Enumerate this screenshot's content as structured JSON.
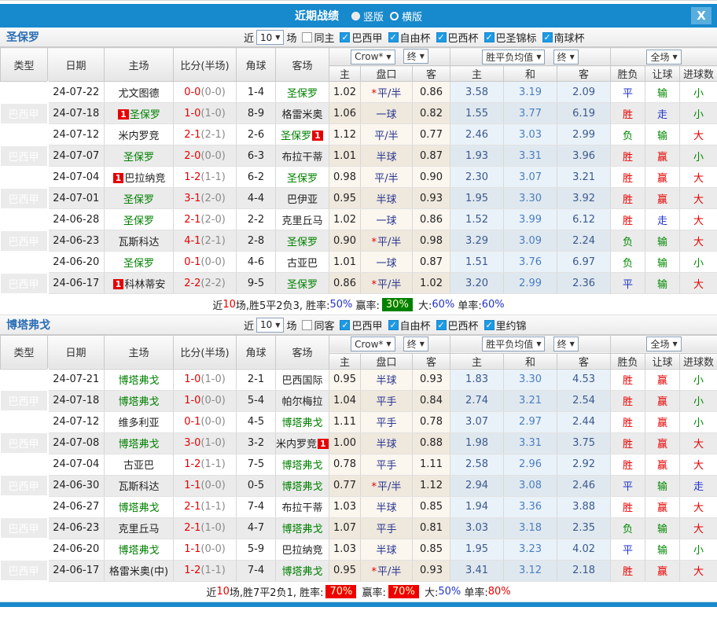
{
  "titlebar": {
    "title": "近期战绩",
    "radios": [
      {
        "label": "竖版",
        "selected": true
      },
      {
        "label": "横版",
        "selected": false
      }
    ],
    "close_icon": "X"
  },
  "icons": {
    "dropdown_arrow": "▼",
    "check": "✓"
  },
  "colors": {
    "titlebar_blue": "#1789cd",
    "type_gold": "#9e7c1c",
    "focus_team_green": "#008000",
    "score_red": "#e60000",
    "handicap_navy": "#28368f",
    "percent_blue": "#2233cc",
    "badge_green": "#008000",
    "badge_red": "#ee0000"
  },
  "table_header": {
    "type": "类型",
    "date": "日期",
    "home": "主场",
    "score": "比分(半场)",
    "corner": "角球",
    "away": "客场",
    "book_select": "Crow*",
    "final_select": "终",
    "mean_select": "胜平负均值",
    "scope_select": "全场",
    "sub": [
      "主",
      "盘口",
      "客",
      "主",
      "和",
      "客",
      "胜负",
      "让球",
      "进球数"
    ]
  },
  "result_colors": {
    "胜": "#e60000",
    "平": "#2233cc",
    "负": "#008800",
    "赢": "#e60000",
    "走": "#2233cc",
    "输": "#008800",
    "大": "#e60000",
    "小": "#008800"
  },
  "sections": [
    {
      "team": "圣保罗",
      "filter": {
        "near_label": "近",
        "count": "10",
        "games_label": "场",
        "same": {
          "label": "同主",
          "checked": false
        },
        "leagues": [
          {
            "label": "巴西甲",
            "checked": true
          },
          {
            "label": "自由杯",
            "checked": true
          },
          {
            "label": "巴西杯",
            "checked": true
          },
          {
            "label": "巴圣锦标",
            "checked": true
          },
          {
            "label": "南球杯",
            "checked": true
          }
        ]
      },
      "rows": [
        {
          "type": "巴西甲",
          "date": "24-07-22",
          "home": "尤文图德",
          "hb": false,
          "hg": false,
          "ft": "0-0",
          "ht": "(0-0)",
          "corner": "1-4",
          "away": "圣保罗",
          "ab": false,
          "ag": true,
          "o1": "1.02",
          "star": true,
          "hcap": "平/半",
          "o2": "0.86",
          "m1": "3.58",
          "m2": "3.19",
          "m3": "2.09",
          "r1": "平",
          "r2": "输",
          "r3": "小"
        },
        {
          "type": "巴西甲",
          "date": "24-07-18",
          "home": "圣保罗",
          "hb": true,
          "hg": true,
          "ft": "1-0",
          "ht": "(1-0)",
          "corner": "8-9",
          "away": "格雷米奥",
          "ab": false,
          "ag": false,
          "o1": "1.06",
          "star": false,
          "hcap": "一球",
          "o2": "0.82",
          "m1": "1.55",
          "m2": "3.77",
          "m3": "6.19",
          "r1": "胜",
          "r2": "走",
          "r3": "小"
        },
        {
          "type": "巴西甲",
          "date": "24-07-12",
          "home": "米内罗竞",
          "hb": false,
          "hg": false,
          "ft": "2-1",
          "ht": "(2-1)",
          "corner": "2-6",
          "away": "圣保罗",
          "ab": true,
          "ag": true,
          "o1": "1.12",
          "star": false,
          "hcap": "平/半",
          "o2": "0.77",
          "m1": "2.46",
          "m2": "3.03",
          "m3": "2.99",
          "r1": "负",
          "r2": "输",
          "r3": "大"
        },
        {
          "type": "巴西甲",
          "date": "24-07-07",
          "home": "圣保罗",
          "hb": false,
          "hg": true,
          "ft": "2-0",
          "ht": "(0-0)",
          "corner": "6-3",
          "away": "布拉干蒂",
          "ab": false,
          "ag": false,
          "o1": "1.01",
          "star": false,
          "hcap": "半球",
          "o2": "0.87",
          "m1": "1.93",
          "m2": "3.31",
          "m3": "3.96",
          "r1": "胜",
          "r2": "赢",
          "r3": "小"
        },
        {
          "type": "巴西甲",
          "date": "24-07-04",
          "home": "巴拉纳竞",
          "hb": true,
          "hg": false,
          "ft": "1-2",
          "ht": "(1-1)",
          "corner": "6-2",
          "away": "圣保罗",
          "ab": false,
          "ag": true,
          "o1": "0.98",
          "star": false,
          "hcap": "平/半",
          "o2": "0.90",
          "m1": "2.30",
          "m2": "3.07",
          "m3": "3.21",
          "r1": "胜",
          "r2": "赢",
          "r3": "大"
        },
        {
          "type": "巴西甲",
          "date": "24-07-01",
          "home": "圣保罗",
          "hb": false,
          "hg": true,
          "ft": "3-1",
          "ht": "(2-0)",
          "corner": "4-4",
          "away": "巴伊亚",
          "ab": false,
          "ag": false,
          "o1": "0.95",
          "star": false,
          "hcap": "半球",
          "o2": "0.93",
          "m1": "1.95",
          "m2": "3.30",
          "m3": "3.92",
          "r1": "胜",
          "r2": "赢",
          "r3": "大"
        },
        {
          "type": "巴西甲",
          "date": "24-06-28",
          "home": "圣保罗",
          "hb": false,
          "hg": true,
          "ft": "2-1",
          "ht": "(2-0)",
          "corner": "2-2",
          "away": "克里丘马",
          "ab": false,
          "ag": false,
          "o1": "1.02",
          "star": false,
          "hcap": "一球",
          "o2": "0.86",
          "m1": "1.52",
          "m2": "3.99",
          "m3": "6.12",
          "r1": "胜",
          "r2": "走",
          "r3": "大"
        },
        {
          "type": "巴西甲",
          "date": "24-06-23",
          "home": "瓦斯科达",
          "hb": false,
          "hg": false,
          "ft": "4-1",
          "ht": "(2-1)",
          "corner": "2-8",
          "away": "圣保罗",
          "ab": false,
          "ag": true,
          "o1": "0.90",
          "star": true,
          "hcap": "平/半",
          "o2": "0.98",
          "m1": "3.29",
          "m2": "3.09",
          "m3": "2.24",
          "r1": "负",
          "r2": "输",
          "r3": "大"
        },
        {
          "type": "巴西甲",
          "date": "24-06-20",
          "home": "圣保罗",
          "hb": false,
          "hg": true,
          "ft": "0-1",
          "ht": "(0-0)",
          "corner": "4-6",
          "away": "古亚巴",
          "ab": false,
          "ag": false,
          "o1": "1.01",
          "star": false,
          "hcap": "一球",
          "o2": "0.87",
          "m1": "1.51",
          "m2": "3.76",
          "m3": "6.97",
          "r1": "负",
          "r2": "输",
          "r3": "小"
        },
        {
          "type": "巴西甲",
          "date": "24-06-17",
          "home": "科林蒂安",
          "hb": true,
          "hg": false,
          "ft": "2-2",
          "ht": "(2-2)",
          "corner": "9-5",
          "away": "圣保罗",
          "ab": false,
          "ag": true,
          "o1": "0.86",
          "star": true,
          "hcap": "平/半",
          "o2": "1.02",
          "m1": "3.20",
          "m2": "2.99",
          "m3": "2.36",
          "r1": "平",
          "r2": "输",
          "r3": "大"
        }
      ],
      "summary": [
        {
          "t": "近",
          "s": "k"
        },
        {
          "t": "10",
          "s": "r"
        },
        {
          "t": "场,胜5平2负3, 胜率:",
          "s": "k"
        },
        {
          "t": "50%",
          "s": "u"
        },
        {
          "t": " 赢率:",
          "s": "k"
        },
        {
          "t": "30%",
          "s": "gb"
        },
        {
          "t": " 大:",
          "s": "k"
        },
        {
          "t": "60%",
          "s": "u"
        },
        {
          "t": " 单率:",
          "s": "k"
        },
        {
          "t": "60%",
          "s": "u"
        }
      ]
    },
    {
      "team": "博塔弗戈",
      "filter": {
        "near_label": "近",
        "count": "10",
        "games_label": "场",
        "same": {
          "label": "同客",
          "checked": false
        },
        "leagues": [
          {
            "label": "巴西甲",
            "checked": true
          },
          {
            "label": "自由杯",
            "checked": true
          },
          {
            "label": "巴西杯",
            "checked": true
          },
          {
            "label": "里约锦",
            "checked": true
          }
        ]
      },
      "rows": [
        {
          "type": "巴西甲",
          "date": "24-07-21",
          "home": "博塔弗戈",
          "hb": false,
          "hg": true,
          "ft": "1-0",
          "ht": "(1-0)",
          "corner": "2-1",
          "away": "巴西国际",
          "ab": false,
          "ag": false,
          "o1": "0.95",
          "star": false,
          "hcap": "半球",
          "o2": "0.93",
          "m1": "1.83",
          "m2": "3.30",
          "m3": "4.53",
          "r1": "胜",
          "r2": "赢",
          "r3": "小"
        },
        {
          "type": "巴西甲",
          "date": "24-07-18",
          "home": "博塔弗戈",
          "hb": false,
          "hg": true,
          "ft": "1-0",
          "ht": "(0-0)",
          "corner": "5-4",
          "away": "帕尔梅拉",
          "ab": false,
          "ag": false,
          "o1": "1.04",
          "star": false,
          "hcap": "平手",
          "o2": "0.84",
          "m1": "2.74",
          "m2": "3.21",
          "m3": "2.54",
          "r1": "胜",
          "r2": "赢",
          "r3": "小"
        },
        {
          "type": "巴西甲",
          "date": "24-07-12",
          "home": "维多利亚",
          "hb": false,
          "hg": false,
          "ft": "0-1",
          "ht": "(0-0)",
          "corner": "4-5",
          "away": "博塔弗戈",
          "ab": false,
          "ag": true,
          "o1": "1.11",
          "star": false,
          "hcap": "平手",
          "o2": "0.78",
          "m1": "3.07",
          "m2": "2.97",
          "m3": "2.44",
          "r1": "胜",
          "r2": "赢",
          "r3": "小"
        },
        {
          "type": "巴西甲",
          "date": "24-07-08",
          "home": "博塔弗戈",
          "hb": false,
          "hg": true,
          "ft": "3-0",
          "ht": "(1-0)",
          "corner": "3-2",
          "away": "米内罗竞",
          "ab": true,
          "ag": false,
          "o1": "1.00",
          "star": false,
          "hcap": "半球",
          "o2": "0.88",
          "m1": "1.98",
          "m2": "3.31",
          "m3": "3.75",
          "r1": "胜",
          "r2": "赢",
          "r3": "大"
        },
        {
          "type": "巴西甲",
          "date": "24-07-04",
          "home": "古亚巴",
          "hb": false,
          "hg": false,
          "ft": "1-2",
          "ht": "(1-1)",
          "corner": "7-5",
          "away": "博塔弗戈",
          "ab": false,
          "ag": true,
          "o1": "0.78",
          "star": false,
          "hcap": "平手",
          "o2": "1.11",
          "m1": "2.58",
          "m2": "2.96",
          "m3": "2.92",
          "r1": "胜",
          "r2": "赢",
          "r3": "大"
        },
        {
          "type": "巴西甲",
          "date": "24-06-30",
          "home": "瓦斯科达",
          "hb": false,
          "hg": false,
          "ft": "1-1",
          "ht": "(0-0)",
          "corner": "0-5",
          "away": "博塔弗戈",
          "ab": false,
          "ag": true,
          "o1": "0.77",
          "star": true,
          "hcap": "平/半",
          "o2": "1.12",
          "m1": "2.94",
          "m2": "3.08",
          "m3": "2.46",
          "r1": "平",
          "r2": "输",
          "r3": "走"
        },
        {
          "type": "巴西甲",
          "date": "24-06-27",
          "home": "博塔弗戈",
          "hb": false,
          "hg": true,
          "ft": "2-1",
          "ht": "(1-1)",
          "corner": "7-4",
          "away": "布拉干蒂",
          "ab": false,
          "ag": false,
          "o1": "1.03",
          "star": false,
          "hcap": "半球",
          "o2": "0.85",
          "m1": "1.94",
          "m2": "3.36",
          "m3": "3.88",
          "r1": "胜",
          "r2": "赢",
          "r3": "大"
        },
        {
          "type": "巴西甲",
          "date": "24-06-23",
          "home": "克里丘马",
          "hb": false,
          "hg": false,
          "ft": "2-1",
          "ht": "(1-0)",
          "corner": "4-7",
          "away": "博塔弗戈",
          "ab": false,
          "ag": true,
          "o1": "1.07",
          "star": false,
          "hcap": "平手",
          "o2": "0.81",
          "m1": "3.03",
          "m2": "3.18",
          "m3": "2.35",
          "r1": "负",
          "r2": "输",
          "r3": "大"
        },
        {
          "type": "巴西甲",
          "date": "24-06-20",
          "home": "博塔弗戈",
          "hb": false,
          "hg": true,
          "ft": "1-1",
          "ht": "(0-0)",
          "corner": "5-9",
          "away": "巴拉纳竞",
          "ab": false,
          "ag": false,
          "o1": "1.03",
          "star": false,
          "hcap": "半球",
          "o2": "0.85",
          "m1": "1.95",
          "m2": "3.23",
          "m3": "4.02",
          "r1": "平",
          "r2": "输",
          "r3": "小"
        },
        {
          "type": "巴西甲",
          "date": "24-06-17",
          "home": "格雷米奥(中)",
          "hb": false,
          "hg": false,
          "ft": "1-2",
          "ht": "(1-1)",
          "corner": "7-4",
          "away": "博塔弗戈",
          "ab": false,
          "ag": true,
          "o1": "0.95",
          "star": true,
          "hcap": "平/半",
          "o2": "0.93",
          "m1": "3.41",
          "m2": "3.12",
          "m3": "2.18",
          "r1": "胜",
          "r2": "赢",
          "r3": "大"
        }
      ],
      "summary": [
        {
          "t": "近",
          "s": "k"
        },
        {
          "t": "10",
          "s": "r"
        },
        {
          "t": "场,胜7平2负1, 胜率:",
          "s": "k"
        },
        {
          "t": "70%",
          "s": "rb"
        },
        {
          "t": " 赢率:",
          "s": "k"
        },
        {
          "t": "70%",
          "s": "rb"
        },
        {
          "t": " 大:",
          "s": "k"
        },
        {
          "t": "50%",
          "s": "u"
        },
        {
          "t": " 单率:",
          "s": "k"
        },
        {
          "t": "80%",
          "s": "r"
        }
      ]
    }
  ]
}
